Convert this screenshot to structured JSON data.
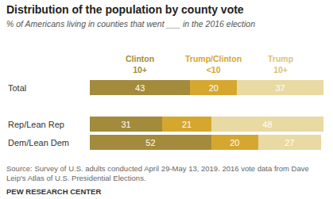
{
  "title": "Distribution of the population by county vote",
  "subtitle": "% of Americans living in counties that went ___ in the 2016 election",
  "source": "Source: Survey of U.S. adults conducted April 29-May 13, 2019. 2016 vote data from Dave Leip's Atlas of U.S. Presidential Elections.",
  "credit": "PEW RESEARCH CENTER",
  "chart_data": {
    "type": "bar",
    "orientation": "horizontal",
    "stacked": true,
    "data_labels": true,
    "tick_labels": "y",
    "categories": [
      "Total",
      "Rep/Lean Rep",
      "Dem/Lean Dem"
    ],
    "series": [
      {
        "name": "Clinton 10+",
        "color": "#a38b3b",
        "values": [
          43,
          31,
          52
        ]
      },
      {
        "name": "Trump/Clinton <10",
        "color": "#d6a72f",
        "values": [
          20,
          21,
          20
        ]
      },
      {
        "name": "Trump 10+",
        "color": "#e9d9a2",
        "values": [
          37,
          48,
          27
        ]
      }
    ],
    "xlim": [
      0,
      100
    ],
    "xticks": []
  }
}
